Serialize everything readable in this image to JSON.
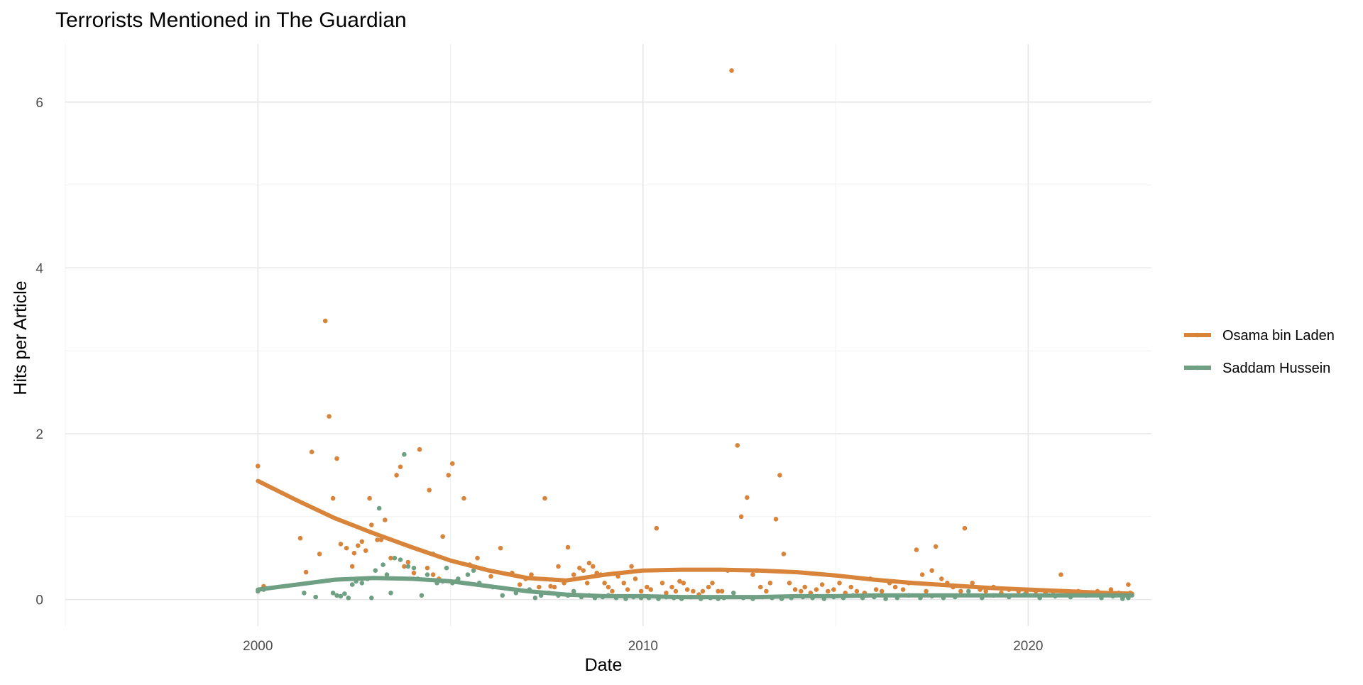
{
  "chart_data": {
    "type": "scatter",
    "title": "Terrorists Mentioned in The Guardian",
    "xlabel": "Date",
    "ylabel": "Hits per Article",
    "xlim": [
      1995,
      2023.2
    ],
    "ylim": [
      -0.32,
      6.7
    ],
    "x_ticks": [
      2000,
      2010,
      2020
    ],
    "x_tick_labels": [
      "2000",
      "2010",
      "2020"
    ],
    "y_ticks": [
      0,
      2,
      4,
      6
    ],
    "y_tick_labels": [
      "0",
      "2",
      "4",
      "6"
    ],
    "grid": true,
    "legend_position": "right",
    "series": [
      {
        "name": "Osama bin Laden",
        "color": "#d8843a",
        "points": [
          [
            2000.0,
            1.61
          ],
          [
            2000.15,
            0.16
          ],
          [
            2001.1,
            0.74
          ],
          [
            2001.25,
            0.33
          ],
          [
            2001.4,
            1.78
          ],
          [
            2001.6,
            0.55
          ],
          [
            2001.75,
            3.36
          ],
          [
            2001.85,
            2.21
          ],
          [
            2001.95,
            1.22
          ],
          [
            2002.05,
            1.7
          ],
          [
            2002.15,
            0.67
          ],
          [
            2002.3,
            0.62
          ],
          [
            2002.45,
            0.4
          ],
          [
            2002.5,
            0.56
          ],
          [
            2002.6,
            0.65
          ],
          [
            2002.7,
            0.7
          ],
          [
            2002.8,
            0.59
          ],
          [
            2002.9,
            1.22
          ],
          [
            2002.95,
            0.9
          ],
          [
            2003.1,
            0.72
          ],
          [
            2003.2,
            0.72
          ],
          [
            2003.3,
            0.96
          ],
          [
            2003.45,
            0.5
          ],
          [
            2003.6,
            1.5
          ],
          [
            2003.7,
            1.6
          ],
          [
            2003.8,
            0.4
          ],
          [
            2003.9,
            0.45
          ],
          [
            2004.05,
            0.32
          ],
          [
            2004.2,
            1.81
          ],
          [
            2004.4,
            0.38
          ],
          [
            2004.45,
            1.32
          ],
          [
            2004.55,
            0.3
          ],
          [
            2004.7,
            0.25
          ],
          [
            2004.8,
            0.76
          ],
          [
            2004.95,
            1.5
          ],
          [
            2005.05,
            1.64
          ],
          [
            2005.15,
            0.22
          ],
          [
            2005.35,
            1.22
          ],
          [
            2005.5,
            0.42
          ],
          [
            2005.7,
            0.5
          ],
          [
            2006.05,
            0.28
          ],
          [
            2006.3,
            0.62
          ],
          [
            2006.6,
            0.32
          ],
          [
            2006.8,
            0.18
          ],
          [
            2006.95,
            0.25
          ],
          [
            2007.1,
            0.3
          ],
          [
            2007.3,
            0.15
          ],
          [
            2007.45,
            1.22
          ],
          [
            2007.6,
            0.16
          ],
          [
            2007.7,
            0.15
          ],
          [
            2007.8,
            0.4
          ],
          [
            2007.95,
            0.2
          ],
          [
            2008.05,
            0.63
          ],
          [
            2008.2,
            0.3
          ],
          [
            2008.35,
            0.38
          ],
          [
            2008.45,
            0.35
          ],
          [
            2008.55,
            0.2
          ],
          [
            2008.6,
            0.44
          ],
          [
            2008.7,
            0.4
          ],
          [
            2008.8,
            0.32
          ],
          [
            2008.9,
            0.3
          ],
          [
            2009.0,
            0.2
          ],
          [
            2009.1,
            0.15
          ],
          [
            2009.2,
            0.1
          ],
          [
            2009.35,
            0.28
          ],
          [
            2009.5,
            0.2
          ],
          [
            2009.6,
            0.12
          ],
          [
            2009.7,
            0.4
          ],
          [
            2009.8,
            0.25
          ],
          [
            2009.95,
            0.1
          ],
          [
            2010.1,
            0.15
          ],
          [
            2010.2,
            0.12
          ],
          [
            2010.35,
            0.86
          ],
          [
            2010.5,
            0.2
          ],
          [
            2010.6,
            0.08
          ],
          [
            2010.75,
            0.15
          ],
          [
            2010.85,
            0.1
          ],
          [
            2010.95,
            0.22
          ],
          [
            2011.05,
            0.2
          ],
          [
            2011.15,
            0.12
          ],
          [
            2011.3,
            0.1
          ],
          [
            2011.45,
            0.06
          ],
          [
            2011.55,
            0.1
          ],
          [
            2011.7,
            0.15
          ],
          [
            2011.8,
            0.2
          ],
          [
            2011.95,
            0.1
          ],
          [
            2012.05,
            0.1
          ],
          [
            2012.2,
            0.35
          ],
          [
            2012.3,
            6.38
          ],
          [
            2012.45,
            1.86
          ],
          [
            2012.55,
            1.0
          ],
          [
            2012.7,
            1.23
          ],
          [
            2012.85,
            0.3
          ],
          [
            2012.95,
            0.35
          ],
          [
            2013.05,
            0.15
          ],
          [
            2013.2,
            0.1
          ],
          [
            2013.3,
            0.2
          ],
          [
            2013.45,
            0.97
          ],
          [
            2013.55,
            1.5
          ],
          [
            2013.65,
            0.55
          ],
          [
            2013.8,
            0.2
          ],
          [
            2013.95,
            0.12
          ],
          [
            2014.1,
            0.1
          ],
          [
            2014.2,
            0.15
          ],
          [
            2014.35,
            0.08
          ],
          [
            2014.5,
            0.12
          ],
          [
            2014.65,
            0.18
          ],
          [
            2014.8,
            0.1
          ],
          [
            2014.95,
            0.12
          ],
          [
            2015.1,
            0.2
          ],
          [
            2015.25,
            0.08
          ],
          [
            2015.4,
            0.15
          ],
          [
            2015.55,
            0.1
          ],
          [
            2015.75,
            0.08
          ],
          [
            2015.9,
            0.25
          ],
          [
            2016.05,
            0.12
          ],
          [
            2016.2,
            0.1
          ],
          [
            2016.4,
            0.2
          ],
          [
            2016.55,
            0.15
          ],
          [
            2016.75,
            0.12
          ],
          [
            2016.9,
            0.2
          ],
          [
            2017.1,
            0.6
          ],
          [
            2017.25,
            0.3
          ],
          [
            2017.35,
            0.1
          ],
          [
            2017.5,
            0.35
          ],
          [
            2017.6,
            0.64
          ],
          [
            2017.75,
            0.25
          ],
          [
            2017.9,
            0.2
          ],
          [
            2018.05,
            0.15
          ],
          [
            2018.25,
            0.1
          ],
          [
            2018.35,
            0.86
          ],
          [
            2018.55,
            0.2
          ],
          [
            2018.75,
            0.12
          ],
          [
            2018.9,
            0.1
          ],
          [
            2019.1,
            0.15
          ],
          [
            2019.3,
            0.08
          ],
          [
            2019.5,
            0.12
          ],
          [
            2019.75,
            0.1
          ],
          [
            2019.95,
            0.08
          ],
          [
            2020.2,
            0.1
          ],
          [
            2020.45,
            0.08
          ],
          [
            2020.65,
            0.06
          ],
          [
            2020.85,
            0.3
          ],
          [
            2021.05,
            0.08
          ],
          [
            2021.3,
            0.1
          ],
          [
            2021.55,
            0.06
          ],
          [
            2021.8,
            0.1
          ],
          [
            2022.15,
            0.12
          ],
          [
            2022.35,
            0.08
          ],
          [
            2022.5,
            0.05
          ],
          [
            2022.6,
            0.18
          ],
          [
            2022.65,
            0.08
          ]
        ],
        "smooth": [
          [
            2000,
            1.43
          ],
          [
            2001,
            1.2
          ],
          [
            2002,
            0.98
          ],
          [
            2003,
            0.8
          ],
          [
            2004,
            0.63
          ],
          [
            2005,
            0.47
          ],
          [
            2006,
            0.35
          ],
          [
            2007,
            0.26
          ],
          [
            2008,
            0.23
          ],
          [
            2009,
            0.3
          ],
          [
            2010,
            0.35
          ],
          [
            2011,
            0.36
          ],
          [
            2012,
            0.36
          ],
          [
            2013,
            0.35
          ],
          [
            2014,
            0.33
          ],
          [
            2015,
            0.29
          ],
          [
            2016,
            0.24
          ],
          [
            2017,
            0.2
          ],
          [
            2018,
            0.17
          ],
          [
            2019,
            0.14
          ],
          [
            2020,
            0.12
          ],
          [
            2021,
            0.1
          ],
          [
            2022,
            0.08
          ],
          [
            2022.7,
            0.07
          ]
        ]
      },
      {
        "name": "Saddam Hussein",
        "color": "#6fa084",
        "points": [
          [
            2000.0,
            0.1
          ],
          [
            2000.15,
            0.12
          ],
          [
            2001.2,
            0.08
          ],
          [
            2001.5,
            0.03
          ],
          [
            2001.95,
            0.08
          ],
          [
            2002.05,
            0.05
          ],
          [
            2002.15,
            0.04
          ],
          [
            2002.25,
            0.07
          ],
          [
            2002.35,
            0.02
          ],
          [
            2002.45,
            0.18
          ],
          [
            2002.55,
            0.22
          ],
          [
            2002.7,
            0.2
          ],
          [
            2002.85,
            0.25
          ],
          [
            2002.95,
            0.02
          ],
          [
            2003.05,
            0.35
          ],
          [
            2003.15,
            1.1
          ],
          [
            2003.25,
            0.42
          ],
          [
            2003.35,
            0.3
          ],
          [
            2003.45,
            0.08
          ],
          [
            2003.55,
            0.5
          ],
          [
            2003.7,
            0.48
          ],
          [
            2003.8,
            1.75
          ],
          [
            2003.9,
            0.4
          ],
          [
            2004.05,
            0.38
          ],
          [
            2004.15,
            0.25
          ],
          [
            2004.25,
            0.05
          ],
          [
            2004.4,
            0.3
          ],
          [
            2004.55,
            0.55
          ],
          [
            2004.65,
            0.2
          ],
          [
            2004.8,
            0.22
          ],
          [
            2004.9,
            0.38
          ],
          [
            2005.05,
            0.2
          ],
          [
            2005.2,
            0.25
          ],
          [
            2005.45,
            0.3
          ],
          [
            2005.6,
            0.35
          ],
          [
            2005.75,
            0.2
          ],
          [
            2006.1,
            0.15
          ],
          [
            2006.35,
            0.05
          ],
          [
            2006.7,
            0.08
          ],
          [
            2007.05,
            0.12
          ],
          [
            2007.2,
            0.02
          ],
          [
            2007.35,
            0.05
          ],
          [
            2007.55,
            0.08
          ],
          [
            2007.8,
            0.05
          ],
          [
            2008.05,
            0.05
          ],
          [
            2008.2,
            0.1
          ],
          [
            2008.4,
            0.03
          ],
          [
            2008.6,
            0.05
          ],
          [
            2008.75,
            0.02
          ],
          [
            2008.95,
            0.03
          ],
          [
            2009.1,
            0.05
          ],
          [
            2009.3,
            0.02
          ],
          [
            2009.55,
            0.01
          ],
          [
            2009.75,
            0.03
          ],
          [
            2009.95,
            0.02
          ],
          [
            2010.15,
            0.02
          ],
          [
            2010.4,
            0.01
          ],
          [
            2010.6,
            0.03
          ],
          [
            2010.8,
            0.02
          ],
          [
            2011.0,
            0.01
          ],
          [
            2011.25,
            0.03
          ],
          [
            2011.5,
            0.01
          ],
          [
            2011.75,
            0.02
          ],
          [
            2011.95,
            0.01
          ],
          [
            2012.1,
            0.02
          ],
          [
            2012.35,
            0.08
          ],
          [
            2012.6,
            0.02
          ],
          [
            2012.85,
            0.01
          ],
          [
            2013.1,
            0.03
          ],
          [
            2013.35,
            0.02
          ],
          [
            2013.6,
            0.01
          ],
          [
            2013.85,
            0.02
          ],
          [
            2014.15,
            0.03
          ],
          [
            2014.4,
            0.02
          ],
          [
            2014.7,
            0.01
          ],
          [
            2014.95,
            0.03
          ],
          [
            2015.2,
            0.02
          ],
          [
            2015.45,
            0.05
          ],
          [
            2015.7,
            0.02
          ],
          [
            2016.0,
            0.03
          ],
          [
            2016.3,
            0.01
          ],
          [
            2016.6,
            0.02
          ],
          [
            2016.9,
            0.05
          ],
          [
            2017.2,
            0.02
          ],
          [
            2017.5,
            0.04
          ],
          [
            2017.8,
            0.02
          ],
          [
            2018.1,
            0.03
          ],
          [
            2018.45,
            0.1
          ],
          [
            2018.8,
            0.02
          ],
          [
            2019.1,
            0.05
          ],
          [
            2019.5,
            0.03
          ],
          [
            2019.9,
            0.06
          ],
          [
            2020.3,
            0.02
          ],
          [
            2020.7,
            0.04
          ],
          [
            2021.1,
            0.03
          ],
          [
            2021.5,
            0.05
          ],
          [
            2021.9,
            0.02
          ],
          [
            2022.2,
            0.04
          ],
          [
            2022.45,
            0.01
          ],
          [
            2022.6,
            0.02
          ]
        ],
        "smooth": [
          [
            2000,
            0.12
          ],
          [
            2001,
            0.18
          ],
          [
            2002,
            0.24
          ],
          [
            2003,
            0.26
          ],
          [
            2004,
            0.25
          ],
          [
            2005,
            0.22
          ],
          [
            2006,
            0.16
          ],
          [
            2007,
            0.1
          ],
          [
            2008,
            0.06
          ],
          [
            2009,
            0.04
          ],
          [
            2010,
            0.04
          ],
          [
            2011,
            0.03
          ],
          [
            2012,
            0.03
          ],
          [
            2013,
            0.03
          ],
          [
            2014,
            0.04
          ],
          [
            2015,
            0.04
          ],
          [
            2016,
            0.05
          ],
          [
            2017,
            0.05
          ],
          [
            2018,
            0.05
          ],
          [
            2019,
            0.05
          ],
          [
            2020,
            0.05
          ],
          [
            2021,
            0.05
          ],
          [
            2022,
            0.05
          ],
          [
            2022.7,
            0.05
          ]
        ]
      }
    ]
  }
}
